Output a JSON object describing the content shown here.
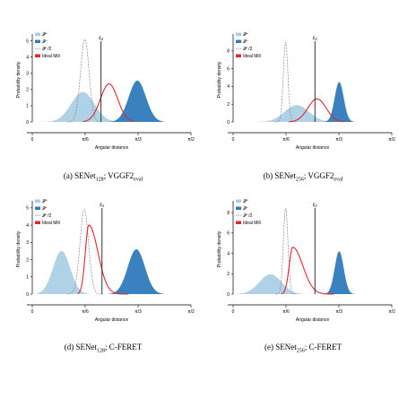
{
  "figure": {
    "panels": [
      {
        "caption_prefix": "(a) SENet",
        "caption_sub": "128",
        "caption_suffix": "; VGGF2",
        "caption_sub2": "eval"
      },
      {
        "caption_prefix": "(b) SENet",
        "caption_sub": "256",
        "caption_suffix": "; VGGF2",
        "caption_sub2": "eval"
      },
      {
        "caption_prefix": "(d) SENet",
        "caption_sub": "128",
        "caption_suffix": "; C-FERET",
        "caption_sub2": ""
      },
      {
        "caption_prefix": "(e) SENet",
        "caption_sub": "256",
        "caption_suffix": "; C-FERET",
        "caption_sub2": ""
      }
    ]
  },
  "chart_data": [
    {
      "type": "area",
      "xlabel": "Angular distance",
      "ylabel": "Probability density",
      "xlim": [
        0,
        1.5708
      ],
      "ylim": [
        0,
        5.2
      ],
      "yticks": [
        0,
        1,
        2,
        3,
        4,
        5
      ],
      "xticks": [
        {
          "value": 0,
          "label": "0"
        },
        {
          "value": 0.5236,
          "label": "π/6"
        },
        {
          "value": 1.0472,
          "label": "π/3"
        },
        {
          "value": 1.5708,
          "label": "π/2"
        }
      ],
      "vline": {
        "x": 0.68,
        "label": "ε₂"
      },
      "legend": [
        "𝒫⁺",
        "𝒫⁻",
        "𝒫⁻/2",
        "Ideal Mill"
      ],
      "series": [
        {
          "name": "𝒫⁺",
          "kind": "gaussian",
          "mu": 0.5,
          "sigma": 0.115,
          "peak": 1.85,
          "range": [
            0.0,
            0.95
          ]
        },
        {
          "name": "𝒫⁻",
          "kind": "gaussian",
          "mu": 1.04,
          "sigma": 0.085,
          "peak": 2.55,
          "range": [
            0.75,
            1.3
          ]
        },
        {
          "name": "𝒫⁻/2",
          "kind": "gaussian",
          "mu": 0.52,
          "sigma": 0.0425,
          "peak": 5.1,
          "range": [
            0.35,
            0.7
          ]
        },
        {
          "name": "Ideal Mill",
          "kind": "gaussian",
          "mu": 0.76,
          "sigma": 0.085,
          "peak": 2.35,
          "range": [
            0.5,
            1.0
          ]
        }
      ]
    },
    {
      "type": "area",
      "xlabel": "Angular distance",
      "ylabel": "Probability density",
      "xlim": [
        0,
        1.5708
      ],
      "ylim": [
        0,
        9.5
      ],
      "yticks": [
        0,
        2,
        4,
        6,
        8
      ],
      "xticks": [
        {
          "value": 0,
          "label": "0"
        },
        {
          "value": 0.5236,
          "label": "π/6"
        },
        {
          "value": 1.0472,
          "label": "π/3"
        },
        {
          "value": 1.5708,
          "label": "π/2"
        }
      ],
      "vline": {
        "x": 0.81,
        "label": "ε₂"
      },
      "legend": [
        "𝒫⁺",
        "𝒫⁻",
        "𝒫⁻/2",
        "Ideal Mill"
      ],
      "series": [
        {
          "name": "𝒫⁺",
          "kind": "gaussian",
          "mu": 0.63,
          "sigma": 0.12,
          "peak": 1.9,
          "range": [
            0.2,
            1.1
          ]
        },
        {
          "name": "𝒫⁻",
          "kind": "gaussian",
          "mu": 1.05,
          "sigma": 0.045,
          "peak": 4.5,
          "range": [
            0.85,
            1.25
          ]
        },
        {
          "name": "𝒫⁻/2",
          "kind": "gaussian",
          "mu": 0.52,
          "sigma": 0.0225,
          "peak": 9.0,
          "range": [
            0.42,
            0.62
          ]
        },
        {
          "name": "Ideal Mill",
          "kind": "gaussian",
          "mu": 0.83,
          "sigma": 0.09,
          "peak": 2.6,
          "range": [
            0.55,
            1.1
          ]
        }
      ]
    },
    {
      "type": "area",
      "xlabel": "Angular distance",
      "ylabel": "Probability density",
      "xlim": [
        0,
        1.5708
      ],
      "ylim": [
        0,
        5.2
      ],
      "yticks": [
        0,
        1,
        2,
        3,
        4,
        5
      ],
      "xticks": [
        {
          "value": 0,
          "label": "0"
        },
        {
          "value": 0.5236,
          "label": "π/6"
        },
        {
          "value": 1.0472,
          "label": "π/3"
        },
        {
          "value": 1.5708,
          "label": "π/2"
        }
      ],
      "vline": {
        "x": 0.69,
        "label": "ε₂"
      },
      "legend": [
        "𝒫⁺",
        "𝒫⁻",
        "𝒫⁻/2",
        "Ideal Mill"
      ],
      "series": [
        {
          "name": "𝒫⁺",
          "kind": "gaussian",
          "mu": 0.29,
          "sigma": 0.085,
          "peak": 2.5,
          "range": [
            0.05,
            0.6
          ]
        },
        {
          "name": "𝒫⁻",
          "kind": "gaussian",
          "mu": 1.03,
          "sigma": 0.085,
          "peak": 2.6,
          "range": [
            0.75,
            1.3
          ]
        },
        {
          "name": "𝒫⁻/2",
          "kind": "gaussian",
          "mu": 0.515,
          "sigma": 0.0425,
          "peak": 4.9,
          "range": [
            0.35,
            0.7
          ]
        },
        {
          "name": "Ideal Mill",
          "kind": "skewed",
          "mu": 0.56,
          "sigma": 0.035,
          "tail": 0.09,
          "peak": 4.0,
          "range": [
            0.45,
            0.95
          ]
        }
      ]
    },
    {
      "type": "area",
      "xlabel": "Angular distance",
      "ylabel": "Probability density",
      "xlim": [
        0,
        1.5708
      ],
      "ylim": [
        0,
        8.8
      ],
      "yticks": [
        0,
        2,
        4,
        6,
        8
      ],
      "xticks": [
        {
          "value": 0,
          "label": "0"
        },
        {
          "value": 0.5236,
          "label": "π/6"
        },
        {
          "value": 1.0472,
          "label": "π/3"
        },
        {
          "value": 1.5708,
          "label": "π/2"
        }
      ],
      "vline": {
        "x": 0.81,
        "label": "ε₂"
      },
      "legend": [
        "𝒫⁺",
        "𝒫⁻",
        "𝒫⁻/2",
        "Ideal Mill"
      ],
      "series": [
        {
          "name": "𝒫⁺",
          "kind": "gaussian",
          "mu": 0.37,
          "sigma": 0.11,
          "peak": 1.95,
          "range": [
            0.0,
            0.75
          ]
        },
        {
          "name": "𝒫⁻",
          "kind": "gaussian",
          "mu": 1.05,
          "sigma": 0.045,
          "peak": 4.2,
          "range": [
            0.85,
            1.25
          ]
        },
        {
          "name": "𝒫⁻/2",
          "kind": "gaussian",
          "mu": 0.52,
          "sigma": 0.023,
          "peak": 8.4,
          "range": [
            0.42,
            0.62
          ]
        },
        {
          "name": "Ideal Mill",
          "kind": "skewed",
          "mu": 0.59,
          "sigma": 0.035,
          "tail": 0.1,
          "peak": 4.6,
          "range": [
            0.48,
            1.0
          ]
        }
      ]
    }
  ],
  "colors": {
    "pos": "#a6cde4",
    "neg": "#2f7bbc",
    "half": "#8c8c8c",
    "ideal": "#e3262b",
    "vline": "#333333"
  }
}
